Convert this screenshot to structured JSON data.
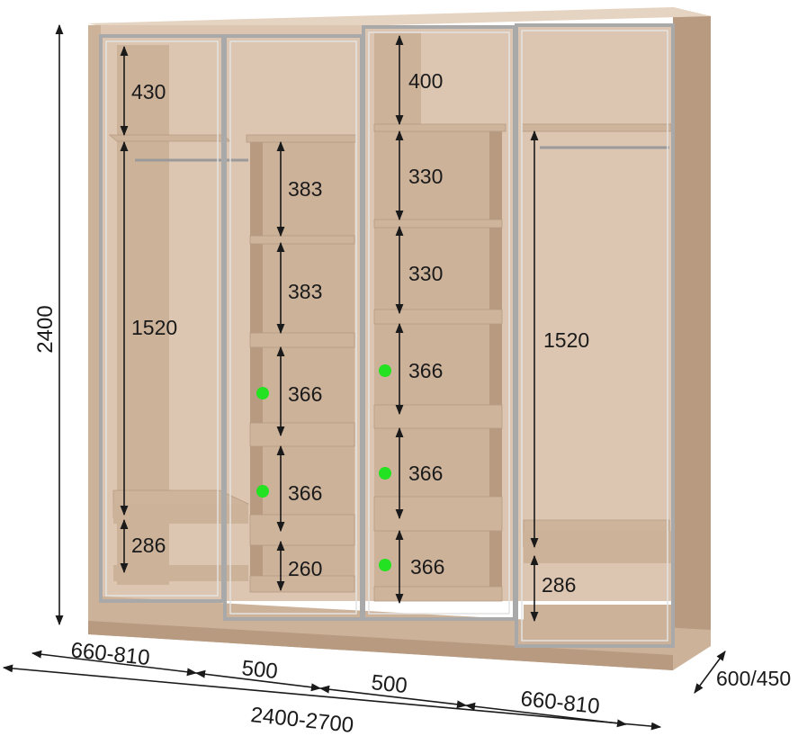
{
  "dimensions": {
    "height_total": "2400",
    "width_total": "2400-2700",
    "depth": "600/450",
    "width_left": "660-810",
    "width_mid1": "500",
    "width_mid2": "500",
    "width_right": "660-810",
    "left_top": "430",
    "left_hang": "1520",
    "left_bottom": "286",
    "mid1_shelf1": "383",
    "mid1_shelf2": "383",
    "mid1_shelf3": "366",
    "mid1_shelf4": "366",
    "mid1_shelf5": "260",
    "mid2_top": "400",
    "mid2_shelf1": "330",
    "mid2_shelf2": "330",
    "mid2_shelf3": "366",
    "mid2_shelf4": "366",
    "mid2_shelf5": "366",
    "right_hang": "1520",
    "right_bottom": "286"
  },
  "colors": {
    "wood": "#cdb29a",
    "marker": "#22e222",
    "frame": "#a9a9a9"
  }
}
